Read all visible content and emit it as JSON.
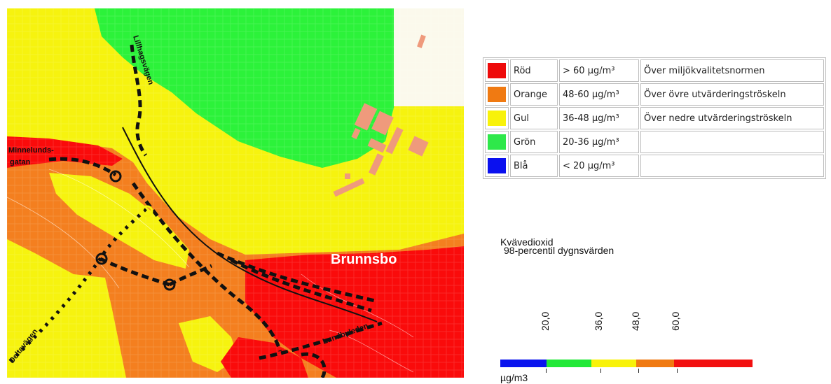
{
  "map": {
    "place_labels": {
      "road_lillhagsvagen": "Lillhagsvägen",
      "road_minnelunds_1": "Minnelunds-",
      "road_minnelunds_2": "gatan",
      "area_brunnsbo": "Brunnsbo",
      "road_deltavagen": "Deltavägen",
      "road_lundbyleden": "Lundbyleden"
    },
    "zone_colors": {
      "red": "#fa0b0b",
      "orange": "#f47f1f",
      "yellow": "#f6f30f",
      "green": "#2cf23a",
      "building": "#ef9a7c"
    }
  },
  "legend": {
    "rows": [
      {
        "color": "#ee0a0a",
        "name": "Röd",
        "range": "> 60 µg/m³",
        "desc": "Över miljökvalitetsnormen"
      },
      {
        "color": "#f07a12",
        "name": "Orange",
        "range": "48-60 µg/m³",
        "desc": "Över övre utvärderingströskeln"
      },
      {
        "color": "#f8f20a",
        "name": "Gul",
        "range": "36-48 µg/m³",
        "desc": "Över nedre utvärderingströskeln"
      },
      {
        "color": "#2ee84a",
        "name": "Grön",
        "range": "20-36 µg/m³",
        "desc": ""
      },
      {
        "color": "#0a10ef",
        "name": "Blå",
        "range": "< 20 µg/m³",
        "desc": ""
      }
    ]
  },
  "scale": {
    "title_line1": "Kvävedioxid",
    "title_line2": "98-percentil dygnsvärden",
    "ticks": [
      "20,0",
      "36,0",
      "48,0",
      "60,0"
    ],
    "unit": "µg/m3"
  }
}
